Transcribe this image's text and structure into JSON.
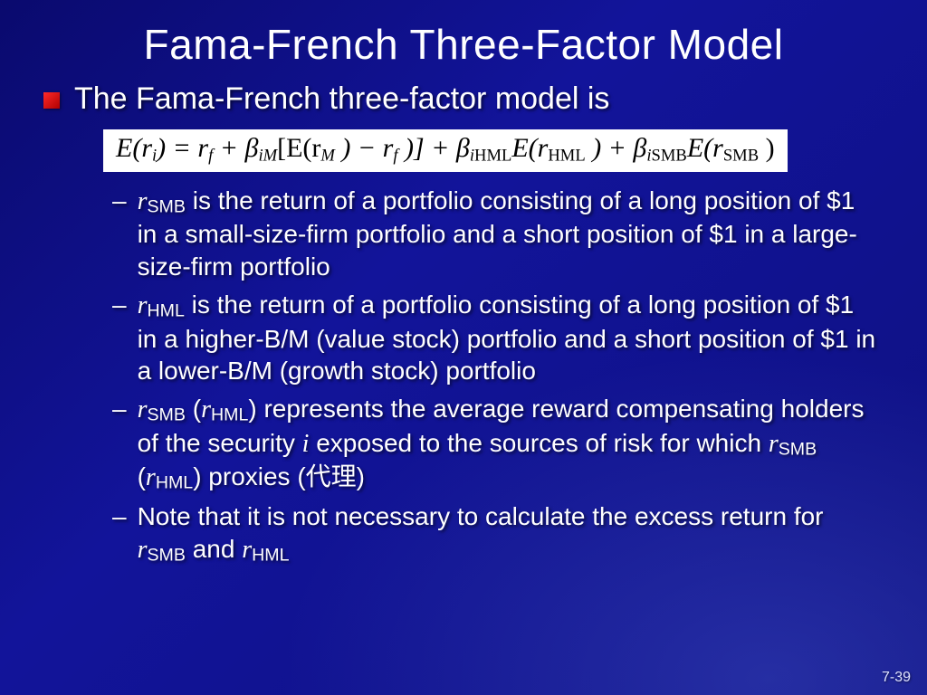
{
  "title": "Fama-French Three-Factor Model",
  "lead": "The Fama-French three-factor model is",
  "formula": {
    "lhs": "E(r",
    "lhs_sub": "i",
    "eq": ") = r",
    "rf_sub": "f",
    "plus1": " + β",
    "bim_sub": "iM",
    "brL": "[E(r",
    "rM_sub": "M",
    "mid": " ) − r",
    "rf2_sub": "f",
    "brR": " )] + β",
    "bihml_sub_i": "i",
    "bihml_sub_t": "HML",
    "ehml": "E(r",
    "rhml_sub": "HML",
    "plus3": " ) + β",
    "bismb_sub_i": "i",
    "bismb_sub_t": "SMB",
    "esmb": "E(r",
    "rsmb_sub": "SMB",
    "close": " )"
  },
  "items": [
    " is the return of a portfolio consisting of a long position of $1 in a small-size-firm portfolio and a short position of $1 in a large-size-firm portfolio",
    " is the return of a portfolio consisting of a long position of $1 in a higher-B/M (value stock) portfolio and a short position of $1 in a lower-B/M (growth stock) portfolio",
    ") represents the average reward compensating holders of the security ",
    " exposed to the sources of risk for which ",
    ") proxies (",
    "代理",
    "Note that it is not necessary to calculate the excess return for "
  ],
  "sym": {
    "r": "r",
    "smb": "SMB",
    "hml": "HML",
    "i": "i",
    "and": " and ",
    "open": " (",
    "close": ")"
  },
  "pagenum": "7-39",
  "colors": {
    "bg1": "#0a0a6e",
    "bg2": "#12149a",
    "bullet": "#ff2a2a",
    "formula_bg": "#ffffff",
    "text": "#ffffff"
  }
}
